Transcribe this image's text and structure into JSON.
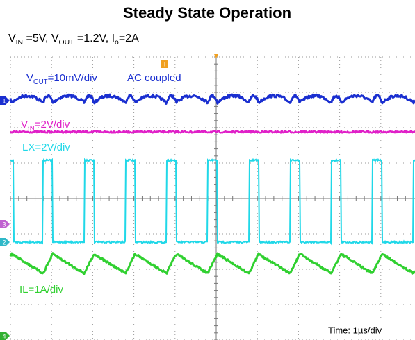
{
  "header": {
    "title": "Steady State Operation",
    "subtitle": [
      "V",
      "IN",
      " =5V, V",
      "OUT",
      " =1.2V, I",
      "o",
      "=2A"
    ]
  },
  "scope": {
    "labels": [
      {
        "parts": [
          "V",
          "OUT",
          "=10mV/div"
        ],
        "color": "#1a2fd0"
      },
      {
        "parts": [
          "AC coupled"
        ],
        "color": "#1a2fd0"
      },
      {
        "parts": [
          "V",
          "IN",
          "=2V/div"
        ],
        "color": "#e020c8"
      },
      {
        "parts": [
          "LX=2V/div"
        ],
        "color": "#20d8e8"
      },
      {
        "parts": [
          "IL=1A/div"
        ],
        "color": "#30d030"
      }
    ],
    "channel_markers": [
      "1",
      "3",
      "2",
      "4"
    ],
    "trigger_marker": "T",
    "timebase": "Time: 1µs/div"
  }
}
